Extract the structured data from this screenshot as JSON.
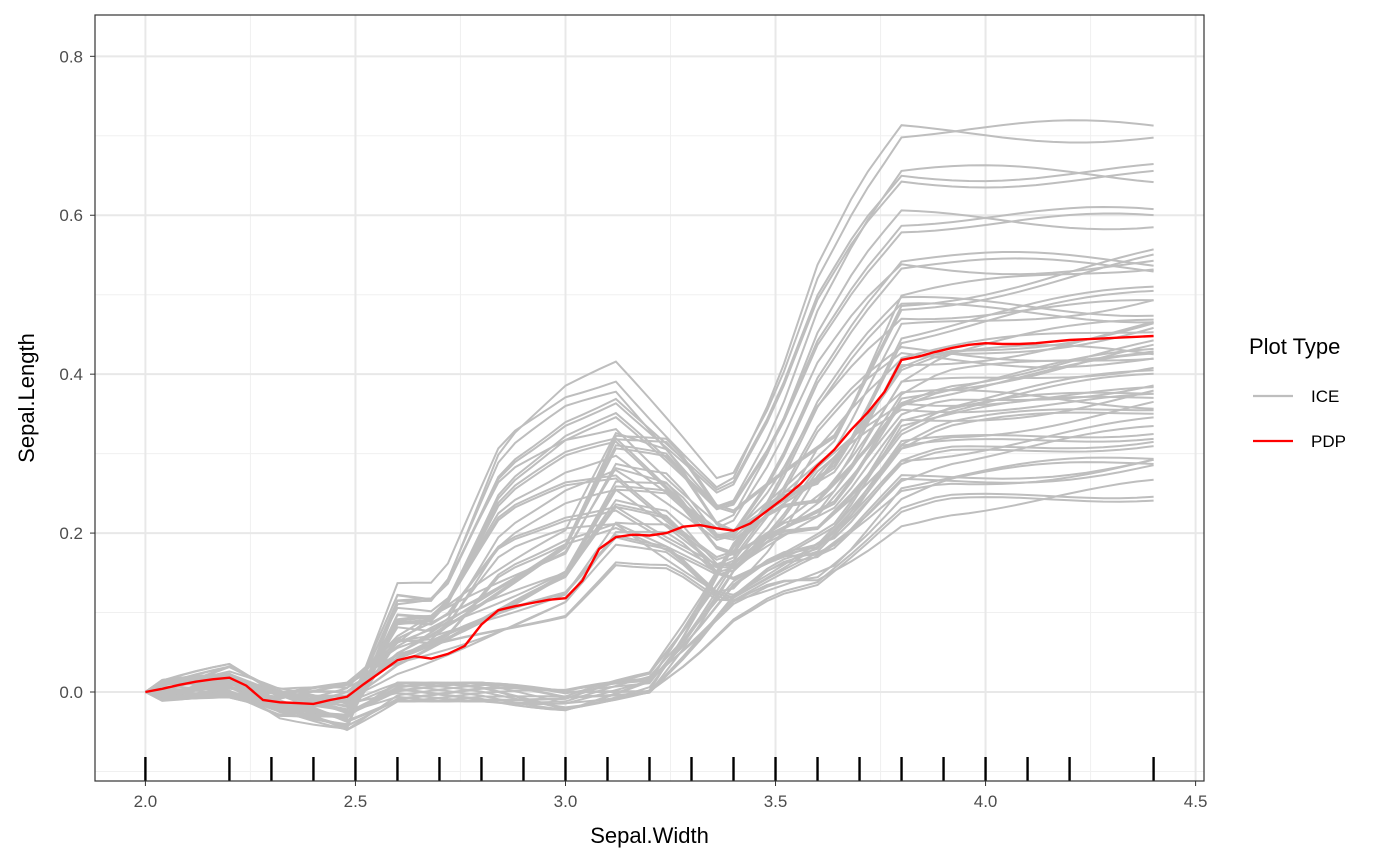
{
  "chart_data": {
    "type": "line",
    "xlabel": "Sepal.Width",
    "ylabel": "Sepal.Length",
    "xlim": [
      1.88,
      4.52
    ],
    "ylim": [
      -0.112,
      0.852
    ],
    "x_ticks": [
      2.0,
      2.5,
      3.0,
      3.5,
      4.0,
      4.5
    ],
    "x_tick_labels": [
      "2.0",
      "2.5",
      "3.0",
      "3.5",
      "4.0",
      "4.5"
    ],
    "y_ticks": [
      0.0,
      0.2,
      0.4,
      0.6,
      0.8
    ],
    "y_tick_labels": [
      "0.0",
      "0.2",
      "0.4",
      "0.6",
      "0.8"
    ],
    "grid": true,
    "legend": {
      "title": "Plot Type",
      "position": "right",
      "entries": [
        {
          "label": "ICE",
          "color": "#bebebe"
        },
        {
          "label": "PDP",
          "color": "#ff0000"
        }
      ]
    },
    "rug_x": [
      2.0,
      2.2,
      2.3,
      2.4,
      2.5,
      2.6,
      2.7,
      2.8,
      2.9,
      3.0,
      3.1,
      3.2,
      3.3,
      3.4,
      3.5,
      3.6,
      3.7,
      3.8,
      3.9,
      4.0,
      4.1,
      4.2,
      4.4
    ],
    "x": [
      2.0,
      2.04,
      2.08,
      2.12,
      2.16,
      2.2,
      2.24,
      2.28,
      2.32,
      2.36,
      2.4,
      2.44,
      2.48,
      2.52,
      2.56,
      2.6,
      2.64,
      2.68,
      2.72,
      2.76,
      2.8,
      2.84,
      2.88,
      2.92,
      2.96,
      3.0,
      3.04,
      3.08,
      3.12,
      3.16,
      3.2,
      3.24,
      3.28,
      3.32,
      3.36,
      3.4,
      3.44,
      3.48,
      3.52,
      3.56,
      3.6,
      3.64,
      3.68,
      3.72,
      3.76,
      3.8,
      3.84,
      3.88,
      3.92,
      3.96,
      4.0,
      4.04,
      4.08,
      4.12,
      4.16,
      4.2,
      4.24,
      4.28,
      4.32,
      4.36,
      4.4
    ],
    "series": [
      {
        "name": "PDP",
        "values": [
          0.0,
          0.004,
          0.009,
          0.013,
          0.016,
          0.018,
          0.008,
          -0.01,
          -0.013,
          -0.014,
          -0.015,
          -0.01,
          -0.006,
          0.01,
          0.025,
          0.04,
          0.045,
          0.042,
          0.048,
          0.058,
          0.085,
          0.103,
          0.108,
          0.112,
          0.116,
          0.118,
          0.14,
          0.18,
          0.195,
          0.198,
          0.197,
          0.2,
          0.208,
          0.21,
          0.206,
          0.203,
          0.212,
          0.228,
          0.244,
          0.262,
          0.285,
          0.305,
          0.33,
          0.352,
          0.378,
          0.418,
          0.422,
          0.428,
          0.433,
          0.437,
          0.439,
          0.438,
          0.438,
          0.439,
          0.441,
          0.443,
          0.444,
          0.445,
          0.446,
          0.447,
          0.448
        ]
      }
    ]
  }
}
